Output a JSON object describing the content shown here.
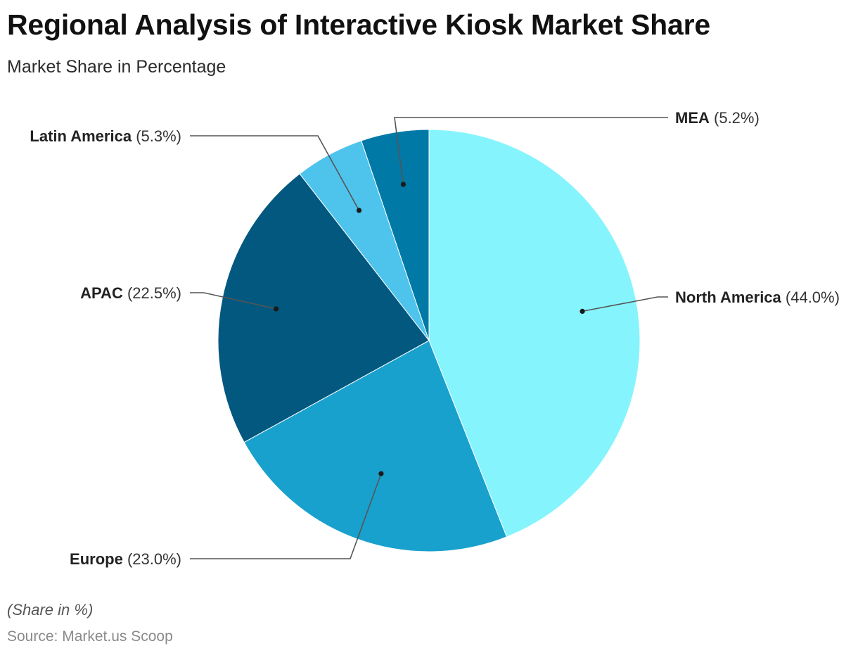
{
  "header": {
    "title": "Regional Analysis of Interactive Kiosk Market Share",
    "subtitle": "Market Share in Percentage"
  },
  "footer": {
    "note": "(Share in %)",
    "source": "Source: Market.us Scoop"
  },
  "chart_data": {
    "type": "pie",
    "title": "Regional Analysis of Interactive Kiosk Market Share",
    "subtitle": "Market Share in Percentage",
    "unit": "%",
    "start": "12 o'clock, clockwise",
    "slices": [
      {
        "label": "North America",
        "value": 44.0,
        "display": "(44.0%)",
        "color": "#86F4FD"
      },
      {
        "label": "Europe",
        "value": 23.0,
        "display": "(23.0%)",
        "color": "#19A1CD"
      },
      {
        "label": "APAC",
        "value": 22.5,
        "display": "(22.5%)",
        "color": "#02587F"
      },
      {
        "label": "Latin America",
        "value": 5.3,
        "display": "(5.3%)",
        "color": "#4EC4ED"
      },
      {
        "label": "MEA",
        "value": 5.2,
        "display": "(5.2%)",
        "color": "#0079A6"
      }
    ]
  }
}
